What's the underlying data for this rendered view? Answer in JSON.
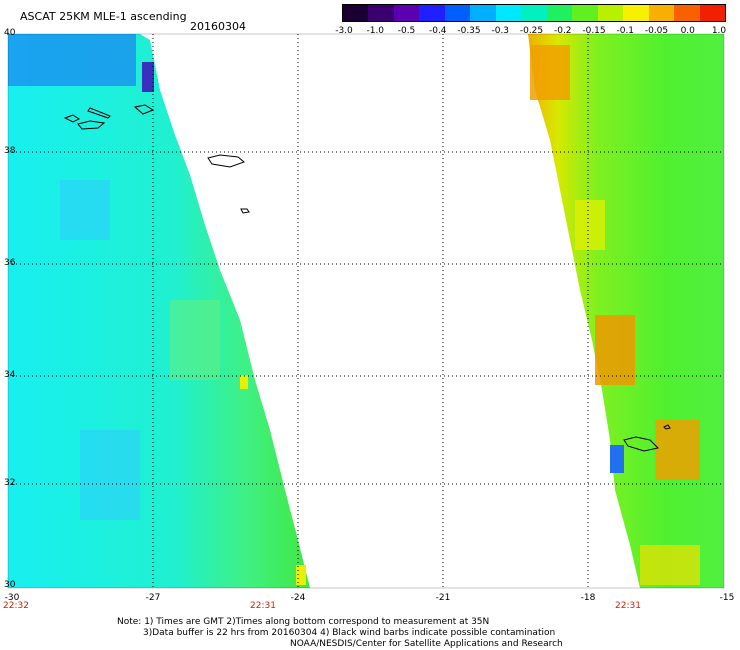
{
  "header": {
    "title": "ASCAT 25KM MLE-1 ascending",
    "date": "20160304"
  },
  "colorbar": {
    "labels": [
      "-3.0",
      "-1.0",
      "-0.5",
      "-0.4",
      "-0.35",
      "-0.3",
      "-0.25",
      "-0.2",
      "-0.15",
      "-0.1",
      "-0.05",
      "0.0",
      "1.0"
    ],
    "colors": [
      "#1a0030",
      "#3b0070",
      "#5a00b0",
      "#2020ff",
      "#0060ff",
      "#00b0ff",
      "#00e8ff",
      "#00f0c0",
      "#20f060",
      "#60f020",
      "#b8f000",
      "#f8f000",
      "#f8b000",
      "#f86000",
      "#f02000"
    ]
  },
  "map": {
    "lat_labels": [
      "40",
      "38",
      "36",
      "34",
      "32",
      "30"
    ],
    "lon_labels": [
      "-30",
      "-27",
      "-24",
      "-21",
      "-18",
      "-15"
    ],
    "time_labels": [
      "22:32",
      "22:31",
      "22:31"
    ],
    "lat_range": [
      30,
      40
    ],
    "lon_range": [
      -30,
      -15
    ]
  },
  "notes": {
    "line1": "Note: 1) Times are GMT 2)Times along bottom correspond to measurement at 35N",
    "line2": "3)Data buffer is 22 hrs from 20160304 4) Black wind barbs indicate possible contamination",
    "line3": "NOAA/NESDIS/Center for Satellite Applications and Research"
  }
}
